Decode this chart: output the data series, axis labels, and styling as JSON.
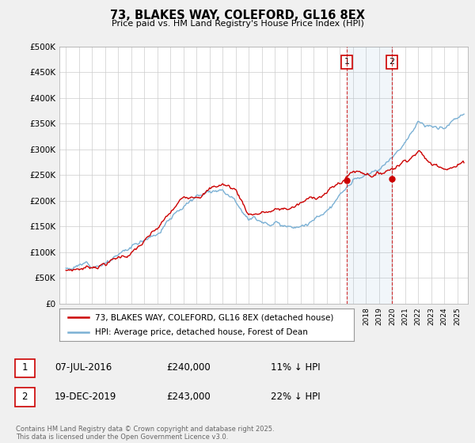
{
  "title": "73, BLAKES WAY, COLEFORD, GL16 8EX",
  "subtitle": "Price paid vs. HM Land Registry's House Price Index (HPI)",
  "legend_line1": "73, BLAKES WAY, COLEFORD, GL16 8EX (detached house)",
  "legend_line2": "HPI: Average price, detached house, Forest of Dean",
  "footnote": "Contains HM Land Registry data © Crown copyright and database right 2025.\nThis data is licensed under the Open Government Licence v3.0.",
  "transaction1_label": "1",
  "transaction1_date": "07-JUL-2016",
  "transaction1_price": "£240,000",
  "transaction1_hpi": "11% ↓ HPI",
  "transaction2_label": "2",
  "transaction2_date": "19-DEC-2019",
  "transaction2_price": "£243,000",
  "transaction2_hpi": "22% ↓ HPI",
  "price_color": "#cc0000",
  "hpi_color": "#7ab0d4",
  "marker1_x": 2016.52,
  "marker2_x": 2019.97,
  "marker1_y": 240000,
  "marker2_y": 243000,
  "ylim": [
    0,
    500000
  ],
  "xlim_start": 1994.5,
  "xlim_end": 2025.8,
  "background_color": "#f0f0f0",
  "plot_bg_color": "#ffffff",
  "grid_color": "#cccccc"
}
